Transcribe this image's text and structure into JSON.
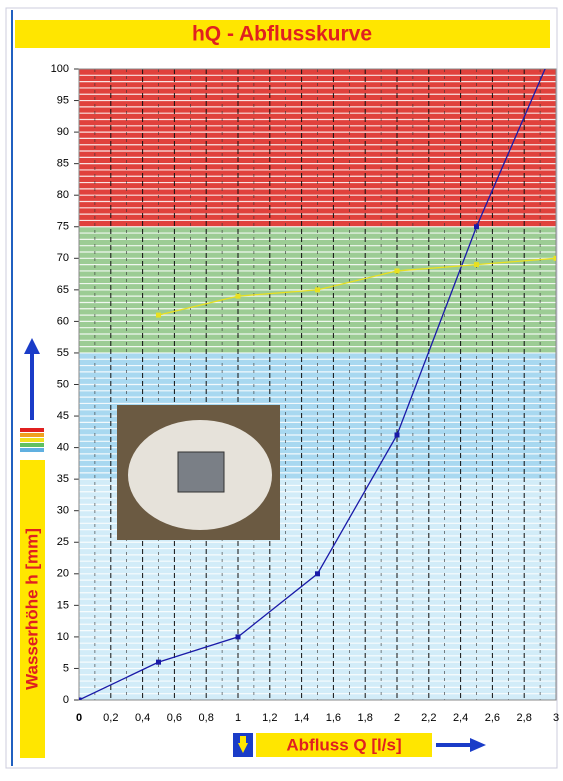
{
  "chart_data": {
    "type": "line",
    "title": "hQ - Abflusskurve",
    "xlabel": "Abfluss Q [l/s]",
    "ylabel": "Wasserhöhe h [mm]",
    "x": [
      0,
      0.5,
      1,
      1.5,
      2,
      2.5,
      3
    ],
    "series": [
      {
        "color": "#1a1aa8",
        "values": [
          0,
          6,
          10,
          20,
          42,
          75,
          104
        ]
      },
      {
        "color": "#e8e020",
        "values": [
          null,
          61,
          64,
          65,
          68,
          69,
          70
        ]
      }
    ],
    "bands": [
      {
        "from": 75,
        "to": 100,
        "color": "#e0413c"
      },
      {
        "from": 55,
        "to": 75,
        "color": "#9ccc94"
      },
      {
        "from": 35,
        "to": 55,
        "color": "#a8d8f0"
      },
      {
        "from": 0,
        "to": 35,
        "color": "#d2ecf8"
      }
    ],
    "xlim": [
      0,
      3
    ],
    "ylim": [
      0,
      100
    ],
    "xticks": [
      0,
      {
        "value": 0.2,
        "label": "0,2"
      },
      {
        "value": 0.4,
        "label": "0,4"
      },
      {
        "value": 0.6,
        "label": "0,6"
      },
      {
        "value": 0.8,
        "label": "0,8"
      },
      1,
      {
        "value": 1.2,
        "label": "1,2"
      },
      {
        "value": 1.4,
        "label": "1,4"
      },
      {
        "value": 1.6,
        "label": "1,6"
      },
      {
        "value": 1.8,
        "label": "1,8"
      },
      2,
      {
        "value": 2.2,
        "label": "2,2"
      },
      {
        "value": 2.4,
        "label": "2,4"
      },
      {
        "value": 2.6,
        "label": "2,6"
      },
      {
        "value": 2.8,
        "label": "2,8"
      },
      3
    ],
    "yticks": [
      0,
      5,
      10,
      15,
      20,
      25,
      30,
      35,
      40,
      45,
      50,
      55,
      60,
      65,
      70,
      75,
      80,
      85,
      90,
      95,
      100
    ],
    "grid": true
  }
}
